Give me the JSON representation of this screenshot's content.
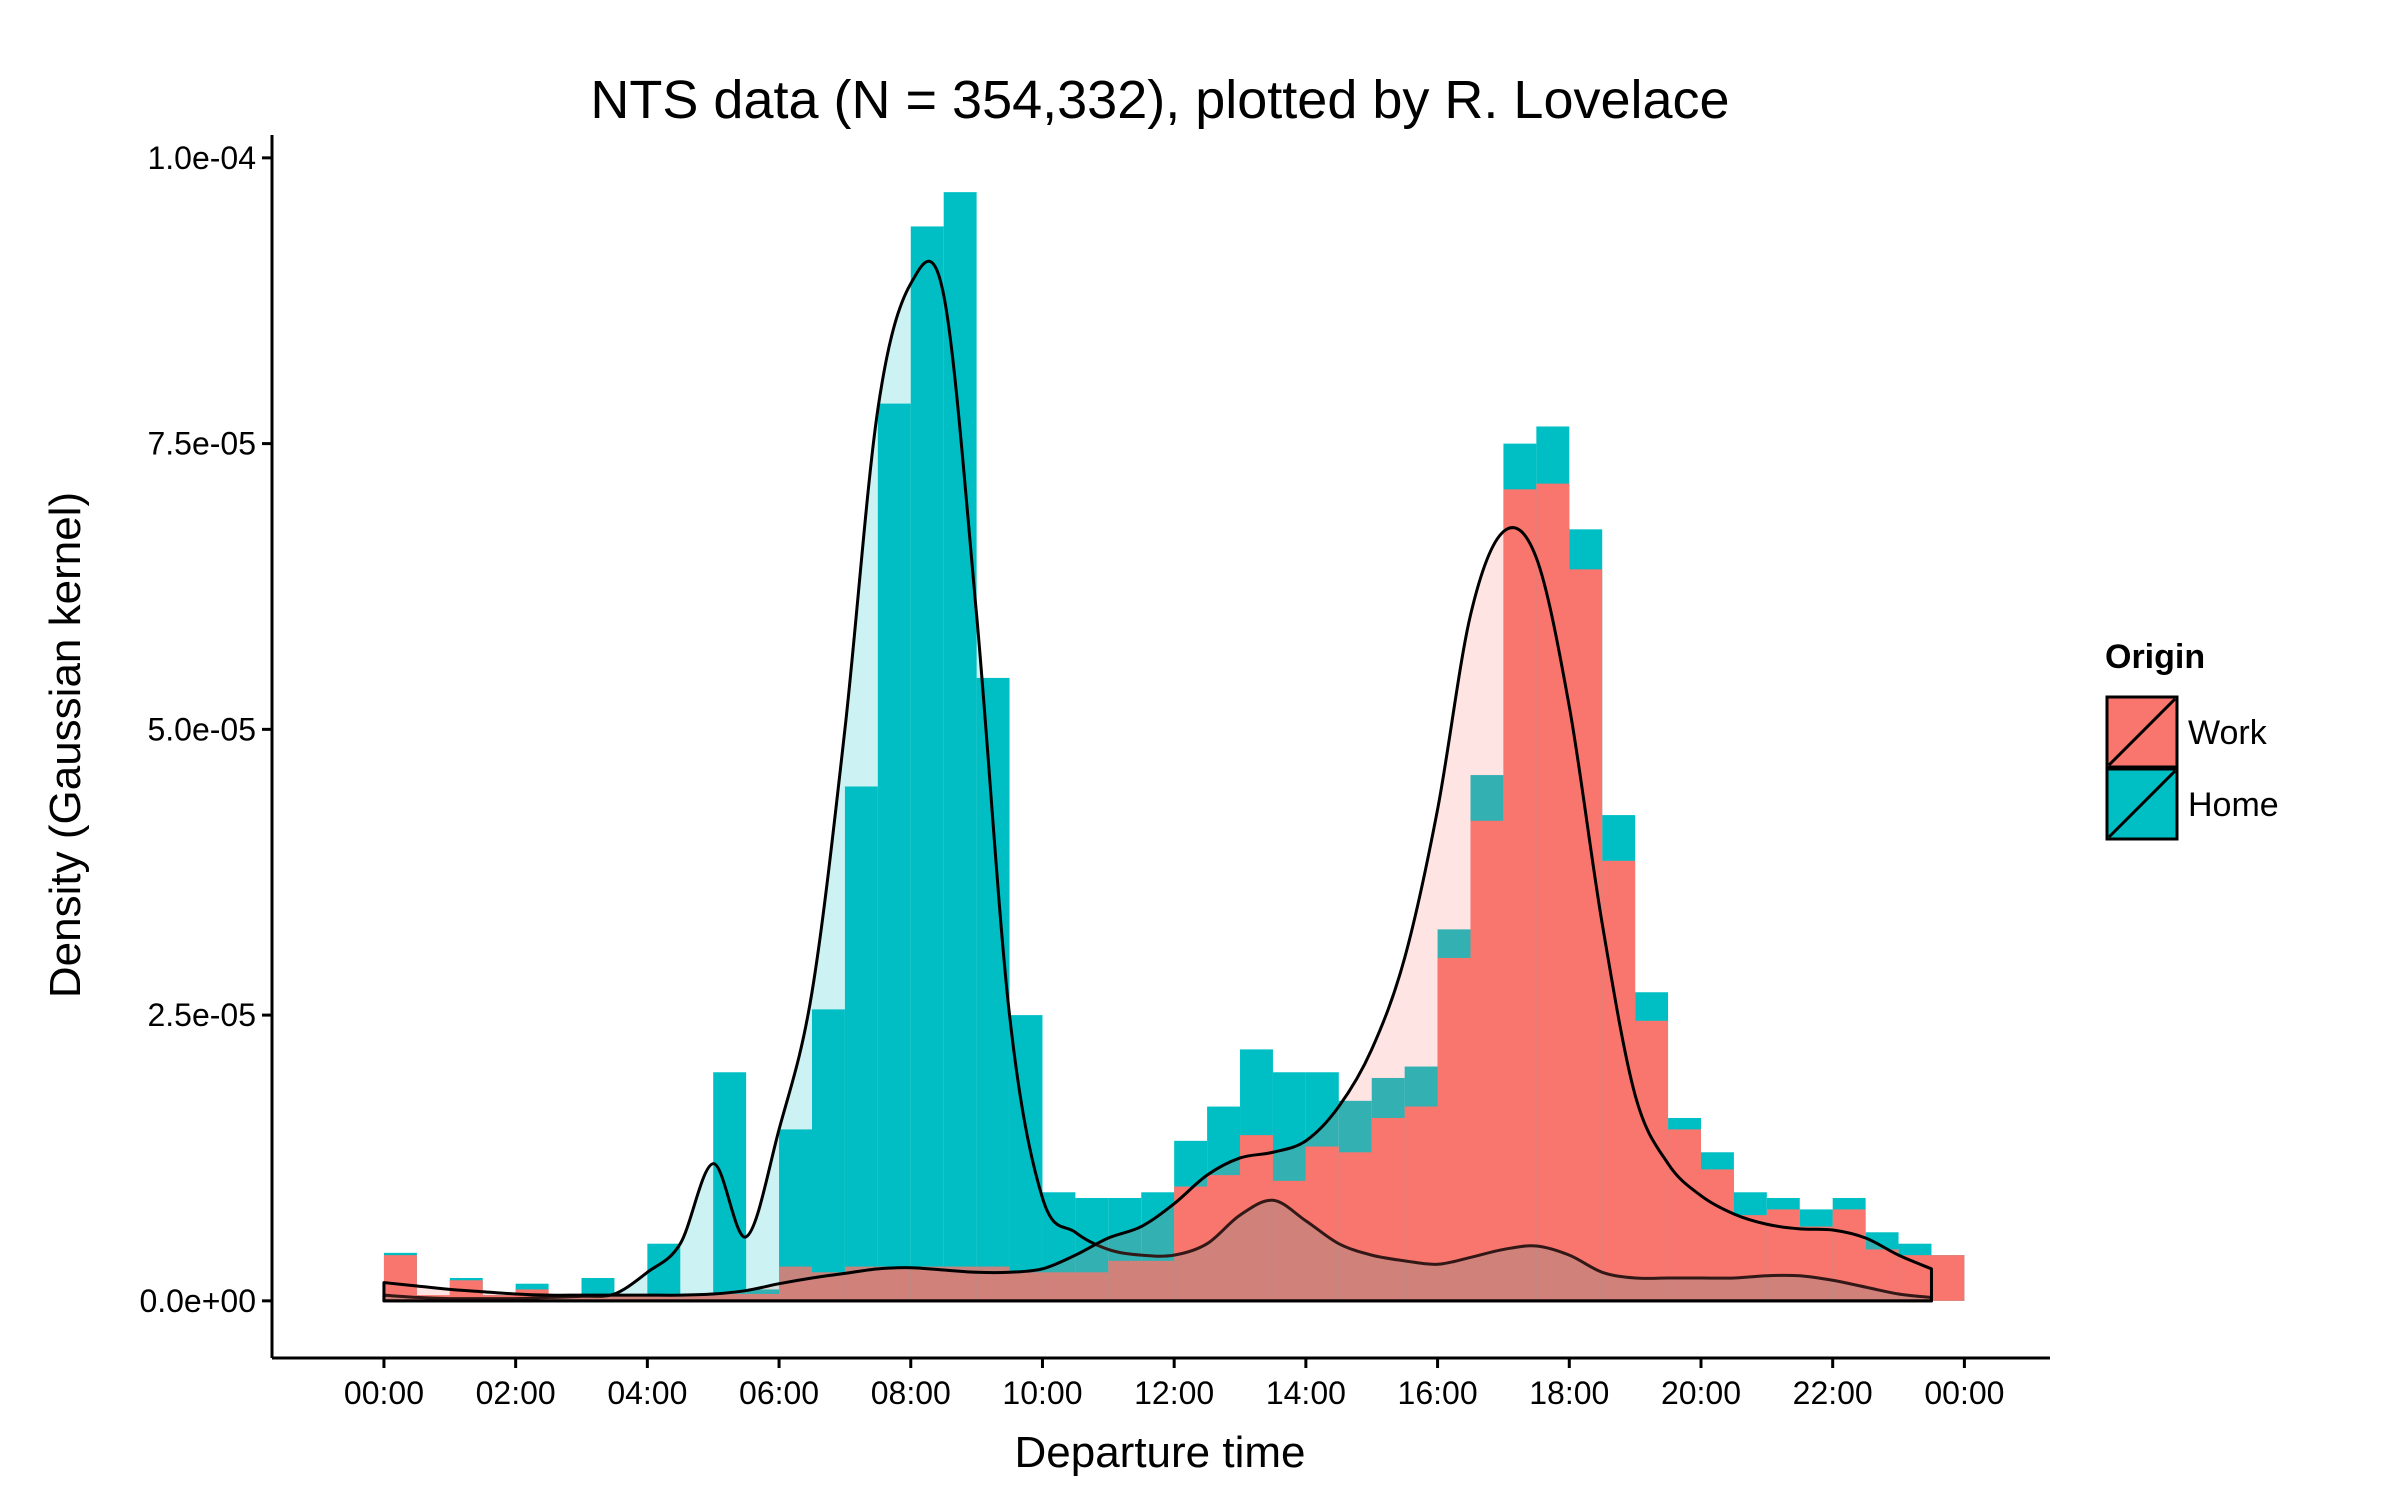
{
  "chart_data": {
    "type": "bar",
    "title": "NTS data (N = 354,332), plotted by R. Lovelace",
    "xlabel": "Departure time",
    "ylabel": "Density (Gaussian kernel)",
    "x_hours": [
      0,
      0.5,
      1,
      1.5,
      2,
      2.5,
      3,
      3.5,
      4,
      4.5,
      5,
      5.5,
      6,
      6.5,
      7,
      7.5,
      8,
      8.5,
      9,
      9.5,
      10,
      10.5,
      11,
      11.5,
      12,
      12.5,
      13,
      13.5,
      14,
      14.5,
      15,
      15.5,
      16,
      16.5,
      17,
      17.5,
      18,
      18.5,
      19,
      19.5,
      20,
      20.5,
      21,
      21.5,
      22,
      22.5,
      23,
      23.5
    ],
    "xticks": [
      "00:00",
      "02:00",
      "04:00",
      "06:00",
      "08:00",
      "10:00",
      "12:00",
      "14:00",
      "16:00",
      "18:00",
      "20:00",
      "22:00",
      "00:00"
    ],
    "xlim": [
      -1.7,
      25.3
    ],
    "yticks": [
      "0.0e+00",
      "2.5e-05",
      "5.0e-05",
      "7.5e-05",
      "1.0e-04"
    ],
    "ylim": [
      -5e-06,
      0.000102
    ],
    "grid": false,
    "legend_position": "right",
    "legend": {
      "title": "Origin",
      "entries": [
        "Work",
        "Home"
      ]
    },
    "series": [
      {
        "name": "Work",
        "color": "#F8766D",
        "values": [
          4e-06,
          5e-07,
          1.8e-06,
          5e-07,
          1e-06,
          5e-07,
          6e-07,
          5e-07,
          6e-07,
          6e-07,
          6e-07,
          6e-07,
          3e-06,
          2.5e-06,
          3e-06,
          3e-06,
          3e-06,
          3e-06,
          3e-06,
          2.5e-06,
          2.5e-06,
          2.5e-06,
          3.5e-06,
          3.5e-06,
          1e-05,
          1.1e-05,
          1.45e-05,
          1.05e-05,
          1.35e-05,
          1.3e-05,
          1.6e-05,
          1.7e-05,
          3e-05,
          4.2e-05,
          7.1e-05,
          7.15e-05,
          6.4e-05,
          3.85e-05,
          2.45e-05,
          1.5e-05,
          1.15e-05,
          7.5e-06,
          8e-06,
          6.5e-06,
          8e-06,
          4.5e-06,
          4e-06,
          4e-06
        ],
        "density": [
          1.6e-06,
          1.3e-06,
          1e-06,
          8e-07,
          6e-07,
          5e-07,
          5e-07,
          5e-07,
          5e-07,
          5e-07,
          6e-07,
          9e-07,
          1.5e-06,
          2e-06,
          2.4e-06,
          2.8e-06,
          2.9e-06,
          2.7e-06,
          2.5e-06,
          2.5e-06,
          2.8e-06,
          4e-06,
          5.5e-06,
          6.5e-06,
          8.5e-06,
          1.1e-05,
          1.25e-05,
          1.3e-05,
          1.4e-05,
          1.7e-05,
          2.2e-05,
          3e-05,
          4.3e-05,
          6e-05,
          6.73e-05,
          6.5e-05,
          5.2e-05,
          3.3e-05,
          1.8e-05,
          1.2e-05,
          9.2e-06,
          7.6e-06,
          6.7e-06,
          6.3e-06,
          6.2e-06,
          5.5e-06,
          4e-06,
          2.8e-06
        ]
      },
      {
        "name": "Home",
        "color": "#00BFC4",
        "values": [
          4.2e-06,
          3e-07,
          2e-06,
          5e-07,
          1.5e-06,
          5e-07,
          2e-06,
          5e-07,
          5e-06,
          5e-07,
          2e-05,
          1e-06,
          1.5e-05,
          2.55e-05,
          4.5e-05,
          7.85e-05,
          9.4e-05,
          9.7e-05,
          5.45e-05,
          2.5e-05,
          9.5e-06,
          9e-06,
          9e-06,
          9.5e-06,
          1.4e-05,
          1.7e-05,
          2.2e-05,
          2e-05,
          2e-05,
          1.75e-05,
          1.95e-05,
          2.05e-05,
          3.25e-05,
          4.6e-05,
          7.5e-05,
          7.65e-05,
          6.75e-05,
          4.25e-05,
          2.7e-05,
          1.6e-05,
          1.3e-05,
          9.5e-06,
          9e-06,
          8e-06,
          9e-06,
          6e-06,
          5e-06,
          4e-06
        ],
        "density": [
          5e-07,
          3e-07,
          2e-07,
          2e-07,
          2e-07,
          3e-07,
          4e-07,
          6e-07,
          2.5e-06,
          5e-06,
          1.2e-05,
          5.6e-06,
          1.5e-05,
          2.7e-05,
          5e-05,
          7.8e-05,
          8.9e-05,
          8.8e-05,
          6e-05,
          2.5e-05,
          9e-06,
          6e-06,
          4.5e-06,
          4e-06,
          4e-06,
          5e-06,
          7.5e-06,
          8.8e-06,
          7e-06,
          5e-06,
          4e-06,
          3.5e-06,
          3.2e-06,
          3.8e-06,
          4.5e-06,
          4.8e-06,
          4e-06,
          2.5e-06,
          2e-06,
          2e-06,
          2e-06,
          2e-06,
          2.2e-06,
          2.2e-06,
          1.8e-06,
          1.2e-06,
          6e-07,
          3e-07
        ]
      }
    ]
  }
}
